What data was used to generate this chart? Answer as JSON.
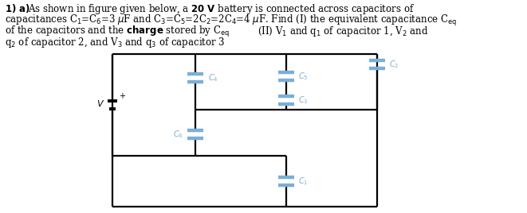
{
  "wire_color": "#000000",
  "cap_color": "#7bafd4",
  "text_color": "#7bafd4",
  "label_fontsize": 7.0,
  "line_width": 1.6,
  "bat_color": "#000000",
  "circuit": {
    "xl": 1.55,
    "xm1": 2.7,
    "xm2": 3.95,
    "xr": 5.2,
    "yt": 2.0,
    "ymu": 1.3,
    "yml": 0.72,
    "yb": 0.08
  }
}
